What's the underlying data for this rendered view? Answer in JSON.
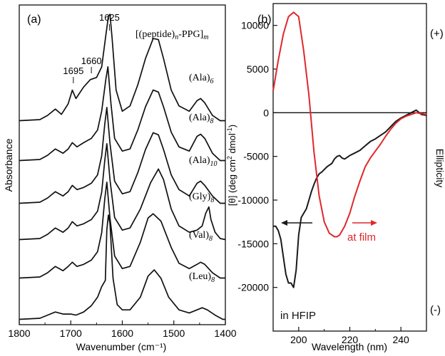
{
  "figure": {
    "panel_a_label": "(a)",
    "panel_b_label": "(b)"
  },
  "colors": {
    "axis": "#111111",
    "ir": "#111111",
    "hfip": "#1a1a1a",
    "film": "#e0272b"
  },
  "chart_data": [
    {
      "type": "line",
      "panel": "(a)",
      "title": "",
      "xlabel": "Wavenumber (cm⁻¹)",
      "ylabel": "Absorbance",
      "xlim": [
        1800,
        1400
      ],
      "x_reversed": true,
      "x_ticks": [
        1800,
        1700,
        1600,
        1500,
        1400
      ],
      "formula": {
        "pre": "[(peptide)",
        "sub_n": "n",
        "mid": "-PPG]",
        "sub_m": "m"
      },
      "peak_markers": [
        {
          "label": "1625",
          "x": 1625,
          "trace": 0
        },
        {
          "label": "1660",
          "x": 1660,
          "trace": 0
        },
        {
          "label": "1695",
          "x": 1695,
          "trace": 0
        }
      ],
      "series": [
        {
          "name": "(Ala)",
          "sub": "6",
          "baseline": 0.0,
          "x": [
            1800,
            1760,
            1745,
            1730,
            1718,
            1705,
            1697,
            1690,
            1675,
            1662,
            1650,
            1640,
            1632,
            1627,
            1624,
            1620,
            1612,
            1600,
            1585,
            1570,
            1555,
            1540,
            1530,
            1520,
            1505,
            1490,
            1470,
            1455,
            1448,
            1440,
            1425,
            1410,
            1400
          ],
          "y": [
            0.01,
            0.02,
            0.06,
            0.12,
            0.07,
            0.17,
            0.3,
            0.22,
            0.33,
            0.4,
            0.42,
            0.52,
            0.82,
            1.0,
            1.02,
            0.8,
            0.3,
            0.1,
            0.15,
            0.35,
            0.6,
            0.79,
            0.78,
            0.6,
            0.3,
            0.15,
            0.1,
            0.2,
            0.22,
            0.18,
            0.06,
            0.01,
            0.01
          ]
        },
        {
          "name": "(Ala)",
          "sub": "8",
          "baseline": 0.0,
          "x": [
            1800,
            1760,
            1745,
            1730,
            1715,
            1705,
            1697,
            1688,
            1675,
            1660,
            1648,
            1640,
            1632,
            1628,
            1622,
            1615,
            1600,
            1585,
            1570,
            1555,
            1540,
            1530,
            1520,
            1505,
            1490,
            1470,
            1455,
            1448,
            1440,
            1425,
            1410,
            1400
          ],
          "y": [
            0.01,
            0.02,
            0.06,
            0.12,
            0.08,
            0.12,
            0.18,
            0.14,
            0.18,
            0.22,
            0.3,
            0.48,
            0.78,
            0.9,
            0.55,
            0.22,
            0.1,
            0.12,
            0.3,
            0.52,
            0.68,
            0.66,
            0.52,
            0.28,
            0.14,
            0.1,
            0.24,
            0.26,
            0.22,
            0.08,
            0.01,
            0.01
          ]
        },
        {
          "name": "(Ala)",
          "sub": "10",
          "baseline": 0.0,
          "x": [
            1800,
            1760,
            1745,
            1730,
            1715,
            1705,
            1697,
            1688,
            1675,
            1660,
            1648,
            1640,
            1634,
            1630,
            1624,
            1615,
            1600,
            1585,
            1570,
            1555,
            1540,
            1530,
            1520,
            1505,
            1490,
            1470,
            1455,
            1448,
            1440,
            1425,
            1410,
            1400
          ],
          "y": [
            0.01,
            0.02,
            0.06,
            0.12,
            0.08,
            0.12,
            0.18,
            0.14,
            0.16,
            0.2,
            0.28,
            0.46,
            0.76,
            0.92,
            0.58,
            0.22,
            0.1,
            0.12,
            0.3,
            0.52,
            0.68,
            0.66,
            0.52,
            0.28,
            0.14,
            0.08,
            0.2,
            0.22,
            0.18,
            0.08,
            0.01,
            0.01
          ]
        },
        {
          "name": "(Gly)",
          "sub": "8",
          "baseline": 0.0,
          "x": [
            1800,
            1760,
            1745,
            1730,
            1715,
            1705,
            1697,
            1688,
            1675,
            1660,
            1648,
            1640,
            1634,
            1630,
            1624,
            1615,
            1600,
            1585,
            1565,
            1545,
            1530,
            1520,
            1505,
            1490,
            1470,
            1455,
            1445,
            1438,
            1432,
            1428,
            1420,
            1410,
            1400
          ],
          "y": [
            0.01,
            0.02,
            0.06,
            0.12,
            0.08,
            0.12,
            0.18,
            0.14,
            0.16,
            0.2,
            0.28,
            0.46,
            0.76,
            0.92,
            0.58,
            0.22,
            0.1,
            0.12,
            0.3,
            0.55,
            0.68,
            0.58,
            0.3,
            0.14,
            0.08,
            0.1,
            0.14,
            0.26,
            0.32,
            0.2,
            0.08,
            0.02,
            0.01
          ]
        },
        {
          "name": "(Val)",
          "sub": "8",
          "baseline": 0.0,
          "x": [
            1800,
            1760,
            1745,
            1730,
            1715,
            1705,
            1697,
            1688,
            1675,
            1660,
            1648,
            1640,
            1634,
            1630,
            1624,
            1615,
            1600,
            1585,
            1565,
            1550,
            1540,
            1525,
            1505,
            1490,
            1470,
            1455,
            1448,
            1440,
            1425,
            1410,
            1400
          ],
          "y": [
            0.01,
            0.02,
            0.06,
            0.12,
            0.08,
            0.12,
            0.16,
            0.12,
            0.14,
            0.18,
            0.26,
            0.44,
            0.76,
            0.92,
            0.58,
            0.22,
            0.1,
            0.12,
            0.35,
            0.58,
            0.62,
            0.55,
            0.3,
            0.15,
            0.1,
            0.14,
            0.16,
            0.14,
            0.06,
            0.01,
            0.01
          ]
        },
        {
          "name": "(Leu)",
          "sub": "8",
          "baseline": 0.0,
          "x": [
            1800,
            1760,
            1745,
            1730,
            1715,
            1700,
            1690,
            1675,
            1660,
            1648,
            1640,
            1633,
            1630,
            1627,
            1624,
            1618,
            1610,
            1600,
            1585,
            1565,
            1550,
            1538,
            1525,
            1510,
            1490,
            1470,
            1455,
            1445,
            1435,
            1420,
            1405,
            1400
          ],
          "y": [
            0.01,
            0.02,
            0.05,
            0.08,
            0.06,
            0.06,
            0.05,
            0.08,
            0.14,
            0.22,
            0.32,
            0.38,
            0.86,
            1.0,
            0.92,
            0.4,
            0.15,
            0.1,
            0.1,
            0.22,
            0.42,
            0.48,
            0.4,
            0.22,
            0.1,
            0.07,
            0.1,
            0.12,
            0.1,
            0.05,
            0.01,
            0.01
          ]
        }
      ]
    },
    {
      "type": "line",
      "panel": "(b)",
      "title": "",
      "xlabel": "Wavelength (nm)",
      "ylabel_parts": {
        "pre": "[θ] (deg cm",
        "sup": "2",
        "mid": " dmol",
        "sup2": "-1",
        "post": ")"
      },
      "right_label": "Ellipticity",
      "right_plus": "(+)",
      "right_minus": "(-)",
      "xlim": [
        190,
        250
      ],
      "ylim": [
        -25000,
        12500
      ],
      "x_ticks": [
        200,
        220,
        240
      ],
      "y_ticks": [
        10000,
        5000,
        0,
        -5000,
        -10000,
        -15000,
        -20000
      ],
      "zero_line": true,
      "series": [
        {
          "name": "in HFIP",
          "color": "#1a1a1a",
          "x": [
            190,
            191,
            192,
            193,
            194,
            195,
            196,
            197,
            198,
            199,
            200,
            201,
            202,
            203,
            204,
            205,
            206,
            207,
            208,
            209,
            210,
            211,
            212,
            213,
            214,
            215,
            216,
            217,
            218,
            219,
            220,
            222,
            224,
            226,
            228,
            230,
            232,
            234,
            236,
            238,
            240,
            242,
            244,
            246,
            248,
            250
          ],
          "y": [
            -13000,
            -13000,
            -13500,
            -14500,
            -16500,
            -18500,
            -19500,
            -19500,
            -20000,
            -18000,
            -14000,
            -12000,
            -11500,
            -11000,
            -10000,
            -9000,
            -8200,
            -7500,
            -7000,
            -6800,
            -6500,
            -6200,
            -6000,
            -5800,
            -5300,
            -5000,
            -4900,
            -5200,
            -5300,
            -5100,
            -4900,
            -4600,
            -4300,
            -3800,
            -3300,
            -3000,
            -2600,
            -2200,
            -1600,
            -1000,
            -600,
            -300,
            0,
            300,
            -200,
            -300
          ]
        },
        {
          "name": "at film",
          "color": "#e0272b",
          "x": [
            190,
            192,
            194,
            196,
            198,
            200,
            202,
            204,
            206,
            208,
            210,
            212,
            214,
            215,
            216,
            218,
            220,
            222,
            224,
            226,
            228,
            230,
            232,
            234,
            236,
            238,
            240,
            242,
            244,
            246,
            248,
            250
          ],
          "y": [
            2500,
            6000,
            9000,
            11000,
            11500,
            11000,
            7000,
            2000,
            -4500,
            -9500,
            -12500,
            -13800,
            -14200,
            -14200,
            -14000,
            -13000,
            -11500,
            -9500,
            -7800,
            -6200,
            -5200,
            -4400,
            -3600,
            -2700,
            -1900,
            -1200,
            -700,
            -400,
            -200,
            0,
            -100,
            -200
          ]
        }
      ],
      "annotations": [
        {
          "text": "in HFIP",
          "series": 0,
          "arrow": "left"
        },
        {
          "text": "at film",
          "series": 1,
          "arrow": "right"
        }
      ]
    }
  ]
}
